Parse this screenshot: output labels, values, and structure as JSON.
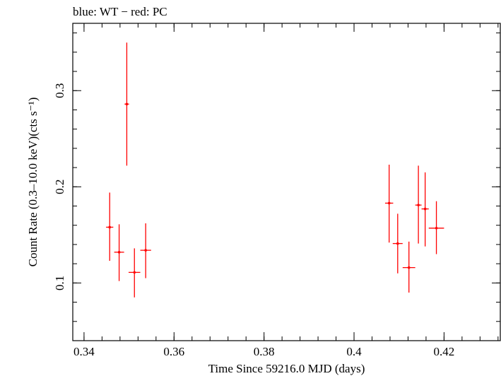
{
  "chart_data": {
    "type": "scatter",
    "title": "blue: WT − red: PC",
    "xlabel": "Time Since 59216.0 MJD (days)",
    "ylabel": "Count Rate (0.3–10.0 keV)(cts s⁻¹)",
    "xlim": [
      0.3375,
      0.4325
    ],
    "ylim": [
      0.04,
      0.37
    ],
    "x_ticks": [
      "0.34",
      "0.36",
      "0.38",
      "0.4",
      "0.42"
    ],
    "y_ticks": [
      "0.1",
      "0.2",
      "0.3"
    ],
    "grid": false,
    "series": [
      {
        "color": "#ff0000",
        "points": [
          {
            "x": 0.3457,
            "xerr": 0.0008,
            "y": 0.158,
            "yerr_lo": 0.035,
            "yerr_hi": 0.036
          },
          {
            "x": 0.3478,
            "xerr": 0.0011,
            "y": 0.132,
            "yerr_lo": 0.03,
            "yerr_hi": 0.029
          },
          {
            "x": 0.3495,
            "xerr": 0.0005,
            "y": 0.286,
            "yerr_lo": 0.064,
            "yerr_hi": 0.064
          },
          {
            "x": 0.3512,
            "xerr": 0.0013,
            "y": 0.111,
            "yerr_lo": 0.026,
            "yerr_hi": 0.025
          },
          {
            "x": 0.3537,
            "xerr": 0.0012,
            "y": 0.134,
            "yerr_lo": 0.029,
            "yerr_hi": 0.028
          },
          {
            "x": 0.4078,
            "xerr": 0.0009,
            "y": 0.183,
            "yerr_lo": 0.041,
            "yerr_hi": 0.04
          },
          {
            "x": 0.4097,
            "xerr": 0.0011,
            "y": 0.141,
            "yerr_lo": 0.031,
            "yerr_hi": 0.031
          },
          {
            "x": 0.4122,
            "xerr": 0.0014,
            "y": 0.116,
            "yerr_lo": 0.026,
            "yerr_hi": 0.027
          },
          {
            "x": 0.4143,
            "xerr": 0.0007,
            "y": 0.181,
            "yerr_lo": 0.04,
            "yerr_hi": 0.041
          },
          {
            "x": 0.4158,
            "xerr": 0.0008,
            "y": 0.177,
            "yerr_lo": 0.039,
            "yerr_hi": 0.038
          },
          {
            "x": 0.4183,
            "xerr": 0.0017,
            "y": 0.157,
            "yerr_lo": 0.027,
            "yerr_hi": 0.028
          }
        ]
      }
    ]
  }
}
